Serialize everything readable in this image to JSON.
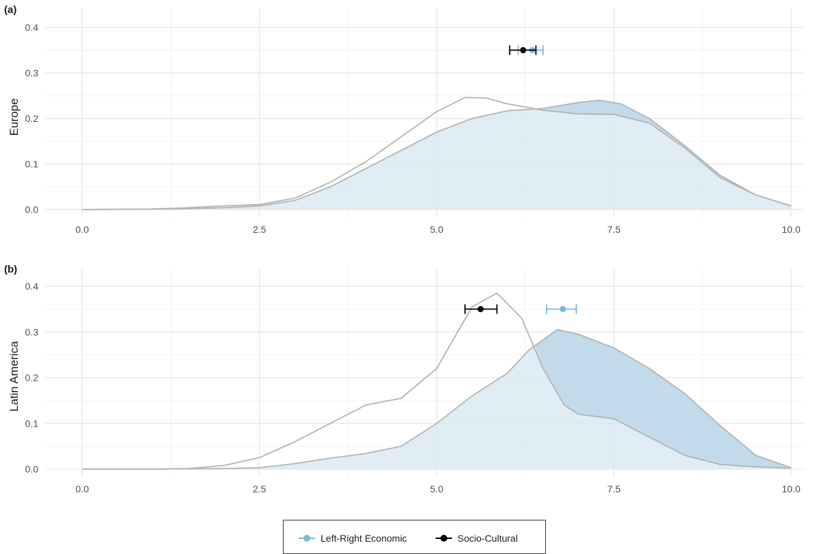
{
  "chart_data": [
    {
      "type": "area",
      "panel_label": "(a)",
      "ylabel": "Europe",
      "xlim": [
        0,
        10
      ],
      "ylim": [
        0,
        0.4
      ],
      "x_ticks": [
        "0.0",
        "2.5",
        "5.0",
        "7.5",
        "10.0"
      ],
      "y_ticks": [
        "0.0",
        "0.1",
        "0.2",
        "0.3",
        "0.4"
      ],
      "grid": true,
      "series": [
        {
          "name": "Left-Right Economic",
          "color": "#7ab8d9",
          "density": [
            [
              0,
              0
            ],
            [
              1,
              0.001
            ],
            [
              1.5,
              0.002
            ],
            [
              2,
              0.004
            ],
            [
              2.5,
              0.008
            ],
            [
              3,
              0.02
            ],
            [
              3.5,
              0.05
            ],
            [
              4,
              0.09
            ],
            [
              4.5,
              0.13
            ],
            [
              5,
              0.17
            ],
            [
              5.5,
              0.2
            ],
            [
              6,
              0.217
            ],
            [
              6.5,
              0.222
            ],
            [
              7,
              0.235
            ],
            [
              7.3,
              0.24
            ],
            [
              7.6,
              0.232
            ],
            [
              8,
              0.2
            ],
            [
              8.5,
              0.14
            ],
            [
              9,
              0.075
            ],
            [
              9.5,
              0.032
            ],
            [
              10,
              0.008
            ]
          ],
          "mean": 6.35,
          "ci": [
            6.15,
            6.5
          ],
          "marker_y": 0.35
        },
        {
          "name": "Socio-Cultural",
          "color": "#000000",
          "density": [
            [
              0,
              0
            ],
            [
              1,
              0.001
            ],
            [
              1.5,
              0.004
            ],
            [
              2,
              0.008
            ],
            [
              2.5,
              0.011
            ],
            [
              3,
              0.025
            ],
            [
              3.5,
              0.06
            ],
            [
              4,
              0.105
            ],
            [
              4.5,
              0.16
            ],
            [
              5,
              0.215
            ],
            [
              5.4,
              0.246
            ],
            [
              5.7,
              0.245
            ],
            [
              6,
              0.232
            ],
            [
              6.5,
              0.218
            ],
            [
              7,
              0.21
            ],
            [
              7.5,
              0.209
            ],
            [
              8,
              0.19
            ],
            [
              8.5,
              0.135
            ],
            [
              9,
              0.07
            ],
            [
              9.5,
              0.032
            ],
            [
              10,
              0.008
            ]
          ],
          "mean": 6.22,
          "ci": [
            6.03,
            6.4
          ],
          "marker_y": 0.35
        }
      ]
    },
    {
      "type": "area",
      "panel_label": "(b)",
      "ylabel": "Latin America",
      "xlim": [
        0,
        10
      ],
      "ylim": [
        0,
        0.4
      ],
      "x_ticks": [
        "0.0",
        "2.5",
        "5.0",
        "7.5",
        "10.0"
      ],
      "y_ticks": [
        "0.0",
        "0.1",
        "0.2",
        "0.3",
        "0.4"
      ],
      "grid": true,
      "series": [
        {
          "name": "Left-Right Economic",
          "color": "#7ab8d9",
          "density": [
            [
              0,
              0
            ],
            [
              1,
              0
            ],
            [
              2,
              0.001
            ],
            [
              2.5,
              0.003
            ],
            [
              3,
              0.012
            ],
            [
              3.5,
              0.024
            ],
            [
              4,
              0.034
            ],
            [
              4.5,
              0.05
            ],
            [
              5,
              0.1
            ],
            [
              5.5,
              0.16
            ],
            [
              6,
              0.21
            ],
            [
              6.3,
              0.26
            ],
            [
              6.7,
              0.305
            ],
            [
              7,
              0.295
            ],
            [
              7.5,
              0.265
            ],
            [
              8,
              0.22
            ],
            [
              8.5,
              0.165
            ],
            [
              9,
              0.095
            ],
            [
              9.5,
              0.03
            ],
            [
              10,
              0.003
            ]
          ],
          "mean": 6.78,
          "ci": [
            6.55,
            6.97
          ],
          "marker_y": 0.35
        },
        {
          "name": "Socio-Cultural",
          "color": "#000000",
          "density": [
            [
              0,
              0
            ],
            [
              1,
              0
            ],
            [
              1.5,
              0.001
            ],
            [
              2,
              0.008
            ],
            [
              2.5,
              0.025
            ],
            [
              3,
              0.06
            ],
            [
              3.5,
              0.1
            ],
            [
              4,
              0.14
            ],
            [
              4.5,
              0.155
            ],
            [
              5,
              0.22
            ],
            [
              5.5,
              0.355
            ],
            [
              5.85,
              0.385
            ],
            [
              6.2,
              0.33
            ],
            [
              6.5,
              0.22
            ],
            [
              6.8,
              0.14
            ],
            [
              7,
              0.12
            ],
            [
              7.5,
              0.11
            ],
            [
              8,
              0.07
            ],
            [
              8.5,
              0.03
            ],
            [
              9,
              0.01
            ],
            [
              9.5,
              0.005
            ],
            [
              10,
              0.002
            ]
          ],
          "mean": 5.62,
          "ci": [
            5.4,
            5.85
          ],
          "marker_y": 0.35
        }
      ]
    }
  ],
  "legend": {
    "items": [
      {
        "label": "Left-Right Economic",
        "color": "#7ab8d9"
      },
      {
        "label": "Socio-Cultural",
        "color": "#000000"
      }
    ],
    "placement": "bottom"
  }
}
